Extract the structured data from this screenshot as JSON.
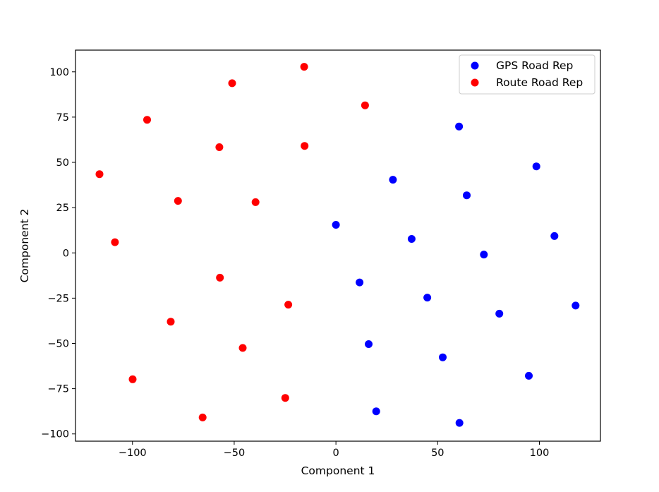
{
  "chart_data": {
    "type": "scatter",
    "title": "",
    "xlabel": "Component 1",
    "ylabel": "Component 2",
    "xlim": [
      -128,
      130
    ],
    "ylim": [
      -104,
      112
    ],
    "xticks": [
      -100,
      -50,
      0,
      50,
      100
    ],
    "yticks": [
      -100,
      -75,
      -50,
      -25,
      0,
      25,
      50,
      75,
      100
    ],
    "xtick_labels": [
      "−100",
      "−50",
      "0",
      "50",
      "100"
    ],
    "ytick_labels": [
      "−100",
      "−75",
      "−50",
      "−25",
      "0",
      "25",
      "50",
      "75",
      "100"
    ],
    "grid": false,
    "legend_position": "top-right",
    "series": [
      {
        "name": "GPS Road Rep",
        "color": "#0000ff",
        "points": [
          [
            60.5,
            69.8
          ],
          [
            98.5,
            47.8
          ],
          [
            28.0,
            40.4
          ],
          [
            64.3,
            31.8
          ],
          [
            0.0,
            15.5
          ],
          [
            37.2,
            7.7
          ],
          [
            107.4,
            9.3
          ],
          [
            72.7,
            -0.9
          ],
          [
            11.6,
            -16.3
          ],
          [
            44.9,
            -24.7
          ],
          [
            80.3,
            -33.6
          ],
          [
            117.8,
            -29.1
          ],
          [
            16.1,
            -50.4
          ],
          [
            52.5,
            -57.7
          ],
          [
            94.8,
            -67.9
          ],
          [
            19.8,
            -87.5
          ],
          [
            60.7,
            -93.9
          ]
        ]
      },
      {
        "name": "Route Road Rep",
        "color": "#ff0000",
        "points": [
          [
            -15.6,
            102.8
          ],
          [
            -51.0,
            93.7
          ],
          [
            14.3,
            81.5
          ],
          [
            -92.8,
            73.5
          ],
          [
            -57.3,
            58.4
          ],
          [
            -15.4,
            59.1
          ],
          [
            -116.2,
            43.5
          ],
          [
            -77.6,
            28.7
          ],
          [
            -39.5,
            28.0
          ],
          [
            -108.6,
            5.9
          ],
          [
            -57.0,
            -13.7
          ],
          [
            -23.4,
            -28.6
          ],
          [
            -81.2,
            -38.0
          ],
          [
            -45.8,
            -52.5
          ],
          [
            -99.9,
            -69.8
          ],
          [
            -24.9,
            -80.1
          ],
          [
            -65.5,
            -90.9
          ]
        ]
      }
    ]
  }
}
